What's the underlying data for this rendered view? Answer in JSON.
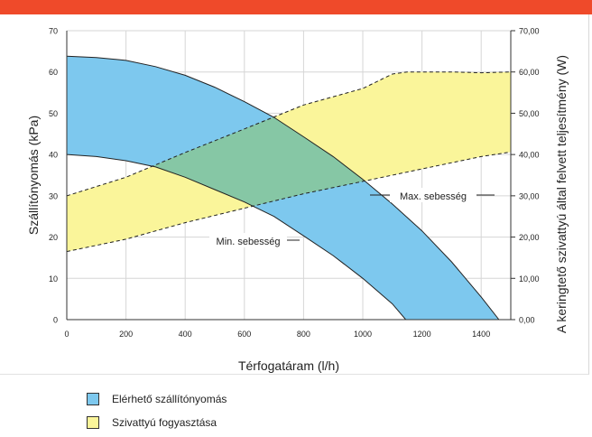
{
  "colors": {
    "header": "#ef4a2a",
    "pressure_area": "#7dc8ee",
    "consumption_area": "#faf59a",
    "overlap_area": "#86c7a5"
  },
  "chart_data": {
    "type": "area",
    "xlabel": "Térfogatáram (l/h)",
    "ylabel": "Szállítónyomás (kPa)",
    "y2label": "A keringtető szivattyú által felvett teljesítmény (W)",
    "xlim": [
      0,
      1500
    ],
    "ylim": [
      0,
      70
    ],
    "y2lim": [
      0,
      70
    ],
    "x_ticks": [
      "0",
      "200",
      "400",
      "600",
      "800",
      "1000",
      "1200",
      "1400"
    ],
    "y_ticks": [
      "0",
      "10",
      "20",
      "30",
      "40",
      "50",
      "60",
      "70"
    ],
    "y2_ticks": [
      "0,00",
      "10,00",
      "20,00",
      "30,00",
      "40,00",
      "50,00",
      "60,00",
      "70,00"
    ],
    "grid": true,
    "series": [
      {
        "name": "Elérhető szállítónyomás",
        "kind": "band",
        "upper": [
          [
            0,
            63.8
          ],
          [
            100,
            63.5
          ],
          [
            200,
            62.8
          ],
          [
            300,
            61.3
          ],
          [
            400,
            59.2
          ],
          [
            500,
            56.3
          ],
          [
            600,
            52.8
          ],
          [
            700,
            49.0
          ],
          [
            800,
            44.3
          ],
          [
            900,
            39.5
          ],
          [
            1000,
            34.0
          ],
          [
            1100,
            28.0
          ],
          [
            1200,
            21.5
          ],
          [
            1300,
            14.0
          ],
          [
            1400,
            5.5
          ],
          [
            1460,
            0
          ]
        ],
        "lower": [
          [
            0,
            40
          ],
          [
            100,
            39.5
          ],
          [
            200,
            38.5
          ],
          [
            300,
            37
          ],
          [
            400,
            34.5
          ],
          [
            500,
            31.5
          ],
          [
            600,
            28.5
          ],
          [
            700,
            25
          ],
          [
            800,
            20.3
          ],
          [
            900,
            15.5
          ],
          [
            1000,
            10
          ],
          [
            1100,
            3.8
          ],
          [
            1145,
            0
          ]
        ]
      },
      {
        "name": "Szivattyú fogyasztása",
        "kind": "band",
        "upper": [
          [
            0,
            30
          ],
          [
            200,
            34.5
          ],
          [
            400,
            40.5
          ],
          [
            600,
            46.2
          ],
          [
            800,
            52
          ],
          [
            1000,
            56
          ],
          [
            1100,
            59.5
          ],
          [
            1150,
            60
          ],
          [
            1300,
            60
          ],
          [
            1400,
            59.8
          ],
          [
            1500,
            60
          ]
        ],
        "lower": [
          [
            0,
            16.5
          ],
          [
            200,
            19.5
          ],
          [
            400,
            23.5
          ],
          [
            600,
            27
          ],
          [
            800,
            30.5
          ],
          [
            1000,
            33.5
          ],
          [
            1200,
            36.5
          ],
          [
            1400,
            39.5
          ],
          [
            1500,
            40.6
          ]
        ]
      }
    ],
    "annotations": [
      "Max. sebesség",
      "Min. sebesség"
    ]
  },
  "legend": [
    {
      "label": "Elérhető szállítónyomás",
      "color": "#7dc8ee"
    },
    {
      "label": "Szivattyú fogyasztása",
      "color": "#faf59a"
    }
  ]
}
